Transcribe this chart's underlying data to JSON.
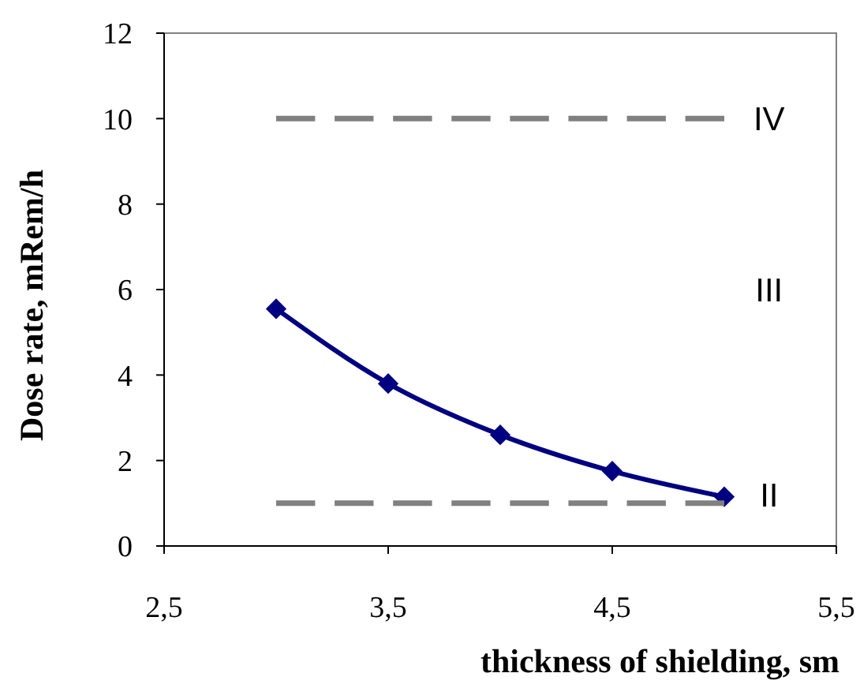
{
  "chart_data": {
    "type": "line",
    "xlabel": "thickness of shielding, sm",
    "ylabel": "Dose rate, mRem/h",
    "xlim": [
      2.5,
      5.5
    ],
    "xticks": [
      {
        "value": 2.5,
        "label": "2,5"
      },
      {
        "value": 3.5,
        "label": "3,5"
      },
      {
        "value": 4.5,
        "label": "4,5"
      },
      {
        "value": 5.5,
        "label": "5,5"
      }
    ],
    "ylim": [
      0,
      12
    ],
    "yticks": [
      0,
      2,
      4,
      6,
      8,
      10,
      12
    ],
    "series": [
      {
        "color": "#000080",
        "x": [
          3,
          3.5,
          4,
          4.5,
          5
        ],
        "values": [
          5.55,
          3.8,
          2.6,
          1.75,
          1.15
        ],
        "marker": "diamond",
        "line_style": "solid"
      },
      {
        "color": "#808080",
        "x": [
          3,
          5
        ],
        "values": [
          10,
          10
        ],
        "marker": "none",
        "line_style": "dashed"
      },
      {
        "color": "#808080",
        "x": [
          3,
          5
        ],
        "values": [
          1,
          1
        ],
        "marker": "none",
        "line_style": "dashed"
      }
    ],
    "annotations": [
      "IV",
      "III",
      "II"
    ]
  }
}
